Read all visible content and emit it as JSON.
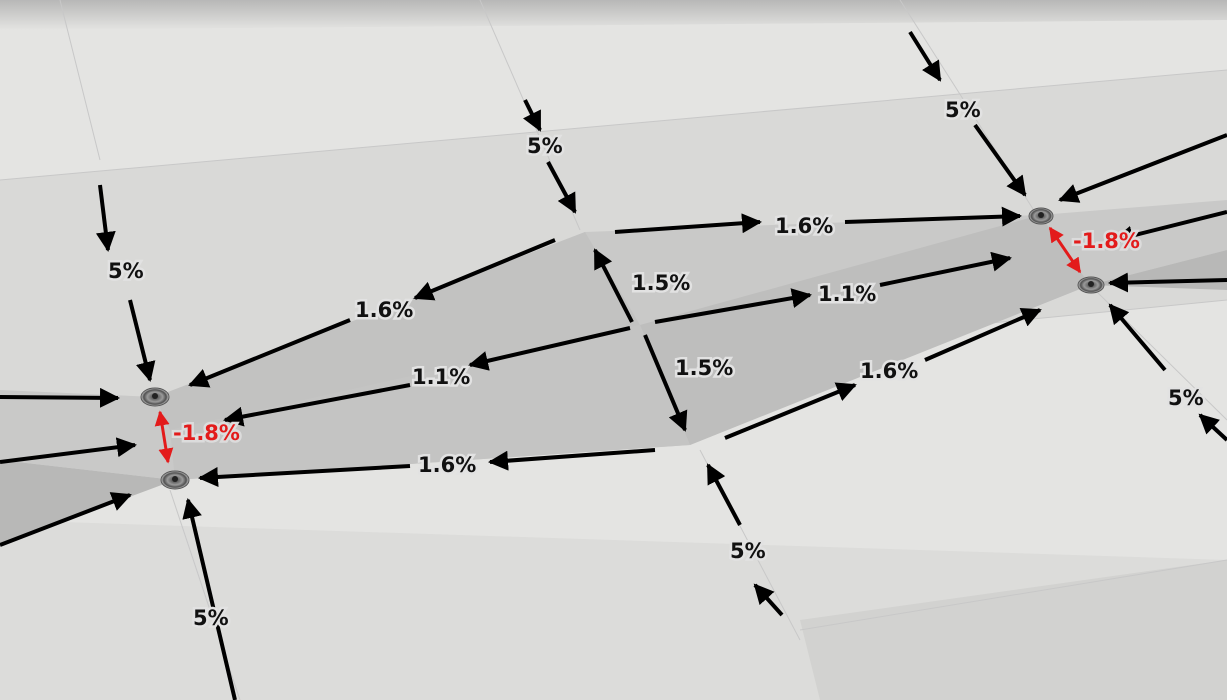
{
  "drains": {
    "left_upper": {
      "name": "drain",
      "icon": "drain-icon"
    },
    "left_lower": {
      "name": "drain",
      "icon": "drain-icon"
    },
    "right_upper": {
      "name": "drain",
      "icon": "drain-icon"
    },
    "right_lower": {
      "name": "drain",
      "icon": "drain-icon"
    }
  },
  "slopes": {
    "left_side_top": "5%",
    "left_side_bottom": "5%",
    "middle_top": "5%",
    "middle_bottom": "5%",
    "right_top": "5%",
    "right_side": "5%",
    "left_upper_valley": "1.6%",
    "left_mid_valley": "1.1%",
    "left_lower_valley": "1.6%",
    "center_upper": "1.5%",
    "center_lower": "1.5%",
    "right_upper_valley": "1.6%",
    "right_mid_valley": "1.1%",
    "right_lower_valley": "1.6%",
    "left_drain_link": "-1.8%",
    "right_drain_link": "-1.8%"
  },
  "colors": {
    "floor_light": "#e6e6e4",
    "floor_mid": "#d6d6d4",
    "valley_dark": "#bcbcbb",
    "valley_mid": "#cacaca",
    "arrow": "#000000",
    "negative_slope": "#e31b1b"
  }
}
